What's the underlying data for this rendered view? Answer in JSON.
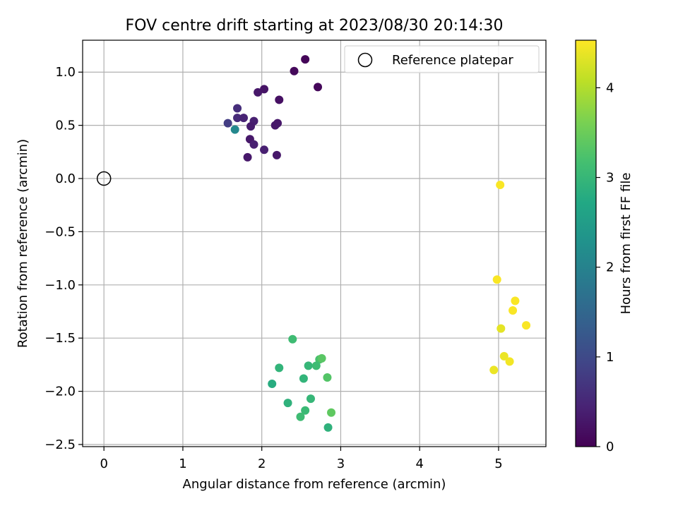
{
  "chart_data": {
    "type": "scatter",
    "title": "FOV centre drift starting at 2023/08/30 20:14:30",
    "xlabel": "Angular distance from reference (arcmin)",
    "ylabel": "Rotation from reference (arcmin)",
    "xlim": [
      -0.27,
      5.6
    ],
    "ylim": [
      -2.52,
      1.3
    ],
    "xticks": [
      0,
      1,
      2,
      3,
      4,
      5
    ],
    "yticks": [
      -2.5,
      -2.0,
      -1.5,
      -1.0,
      -0.5,
      0.0,
      0.5,
      1.0
    ],
    "xtick_labels": [
      "0",
      "1",
      "2",
      "3",
      "4",
      "5"
    ],
    "ytick_labels": [
      "−2.5",
      "−2.0",
      "−1.5",
      "−1.0",
      "−0.5",
      "0.0",
      "0.5",
      "1.0"
    ],
    "grid": true,
    "legend": {
      "placement": "top-right",
      "entries": [
        "Reference platepar"
      ]
    },
    "reference_point": {
      "x": 0.0,
      "y": 0.0
    },
    "colorbar": {
      "label": "Hours from first FF file",
      "colormap": "viridis",
      "range": [
        0,
        4.53
      ],
      "ticks": [
        0,
        1,
        2,
        3,
        4
      ],
      "tick_labels": [
        "0",
        "1",
        "2",
        "3",
        "4"
      ]
    },
    "points": [
      {
        "x": 2.55,
        "y": 1.12,
        "hours": 0.05
      },
      {
        "x": 2.41,
        "y": 1.01,
        "hours": 0.1
      },
      {
        "x": 2.71,
        "y": 0.86,
        "hours": 0.08
      },
      {
        "x": 1.95,
        "y": 0.81,
        "hours": 0.3
      },
      {
        "x": 2.03,
        "y": 0.84,
        "hours": 0.25
      },
      {
        "x": 2.22,
        "y": 0.74,
        "hours": 0.2
      },
      {
        "x": 1.69,
        "y": 0.66,
        "hours": 0.6
      },
      {
        "x": 1.69,
        "y": 0.57,
        "hours": 0.55
      },
      {
        "x": 1.77,
        "y": 0.57,
        "hours": 0.45
      },
      {
        "x": 1.9,
        "y": 0.54,
        "hours": 0.4
      },
      {
        "x": 1.57,
        "y": 0.52,
        "hours": 0.8
      },
      {
        "x": 1.86,
        "y": 0.49,
        "hours": 0.35
      },
      {
        "x": 2.17,
        "y": 0.5,
        "hours": 0.3
      },
      {
        "x": 2.2,
        "y": 0.52,
        "hours": 0.3
      },
      {
        "x": 1.66,
        "y": 0.46,
        "hours": 2.1
      },
      {
        "x": 1.85,
        "y": 0.37,
        "hours": 0.3
      },
      {
        "x": 1.9,
        "y": 0.32,
        "hours": 0.4
      },
      {
        "x": 2.03,
        "y": 0.27,
        "hours": 0.4
      },
      {
        "x": 1.82,
        "y": 0.2,
        "hours": 0.3
      },
      {
        "x": 2.19,
        "y": 0.22,
        "hours": 0.3
      },
      {
        "x": 5.02,
        "y": -0.06,
        "hours": 4.5
      },
      {
        "x": 4.98,
        "y": -0.95,
        "hours": 4.5
      },
      {
        "x": 5.21,
        "y": -1.15,
        "hours": 4.5
      },
      {
        "x": 5.18,
        "y": -1.24,
        "hours": 4.5
      },
      {
        "x": 5.03,
        "y": -1.41,
        "hours": 4.35
      },
      {
        "x": 5.35,
        "y": -1.38,
        "hours": 4.5
      },
      {
        "x": 5.07,
        "y": -1.67,
        "hours": 4.4
      },
      {
        "x": 5.14,
        "y": -1.72,
        "hours": 4.45
      },
      {
        "x": 4.94,
        "y": -1.8,
        "hours": 4.4
      },
      {
        "x": 2.39,
        "y": -1.51,
        "hours": 3.1
      },
      {
        "x": 2.73,
        "y": -1.7,
        "hours": 3.2
      },
      {
        "x": 2.76,
        "y": -1.69,
        "hours": 3.35
      },
      {
        "x": 2.22,
        "y": -1.78,
        "hours": 2.95
      },
      {
        "x": 2.59,
        "y": -1.76,
        "hours": 3.0
      },
      {
        "x": 2.69,
        "y": -1.76,
        "hours": 3.1
      },
      {
        "x": 2.53,
        "y": -1.88,
        "hours": 2.95
      },
      {
        "x": 2.83,
        "y": -1.87,
        "hours": 3.3
      },
      {
        "x": 2.13,
        "y": -1.93,
        "hours": 2.8
      },
      {
        "x": 2.62,
        "y": -2.07,
        "hours": 3.0
      },
      {
        "x": 2.33,
        "y": -2.11,
        "hours": 2.9
      },
      {
        "x": 2.55,
        "y": -2.18,
        "hours": 3.05
      },
      {
        "x": 2.88,
        "y": -2.2,
        "hours": 3.4
      },
      {
        "x": 2.49,
        "y": -2.24,
        "hours": 3.1
      },
      {
        "x": 2.84,
        "y": -2.34,
        "hours": 2.9
      }
    ]
  }
}
